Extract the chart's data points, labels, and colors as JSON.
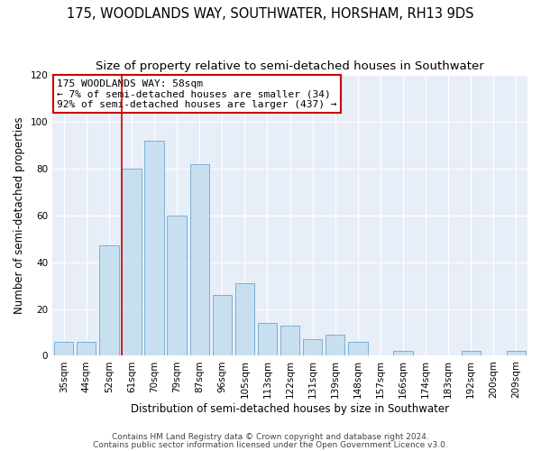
{
  "title": "175, WOODLANDS WAY, SOUTHWATER, HORSHAM, RH13 9DS",
  "subtitle": "Size of property relative to semi-detached houses in Southwater",
  "xlabel": "Distribution of semi-detached houses by size in Southwater",
  "ylabel": "Number of semi-detached properties",
  "bin_labels": [
    "35sqm",
    "44sqm",
    "52sqm",
    "61sqm",
    "70sqm",
    "79sqm",
    "87sqm",
    "96sqm",
    "105sqm",
    "113sqm",
    "122sqm",
    "131sqm",
    "139sqm",
    "148sqm",
    "157sqm",
    "166sqm",
    "174sqm",
    "183sqm",
    "192sqm",
    "200sqm",
    "209sqm"
  ],
  "bar_values": [
    6,
    6,
    47,
    80,
    92,
    60,
    82,
    26,
    31,
    14,
    13,
    7,
    9,
    6,
    0,
    2,
    0,
    0,
    2,
    0,
    2
  ],
  "bar_color": "#c8dff0",
  "bar_edgecolor": "#7ab0d4",
  "vline_x_index": 3,
  "vline_color": "#cc0000",
  "annotation_text": "175 WOODLANDS WAY: 58sqm\n← 7% of semi-detached houses are smaller (34)\n92% of semi-detached houses are larger (437) →",
  "annotation_box_edgecolor": "#cc0000",
  "ylim": [
    0,
    120
  ],
  "yticks": [
    0,
    20,
    40,
    60,
    80,
    100,
    120
  ],
  "footer1": "Contains HM Land Registry data © Crown copyright and database right 2024.",
  "footer2": "Contains public sector information licensed under the Open Government Licence v3.0.",
  "bg_color": "#e8eef8",
  "grid_color": "#ffffff",
  "title_fontsize": 10.5,
  "subtitle_fontsize": 9.5,
  "annotation_fontsize": 8.0,
  "axis_label_fontsize": 8.5,
  "tick_fontsize": 7.5,
  "footer_fontsize": 6.5
}
